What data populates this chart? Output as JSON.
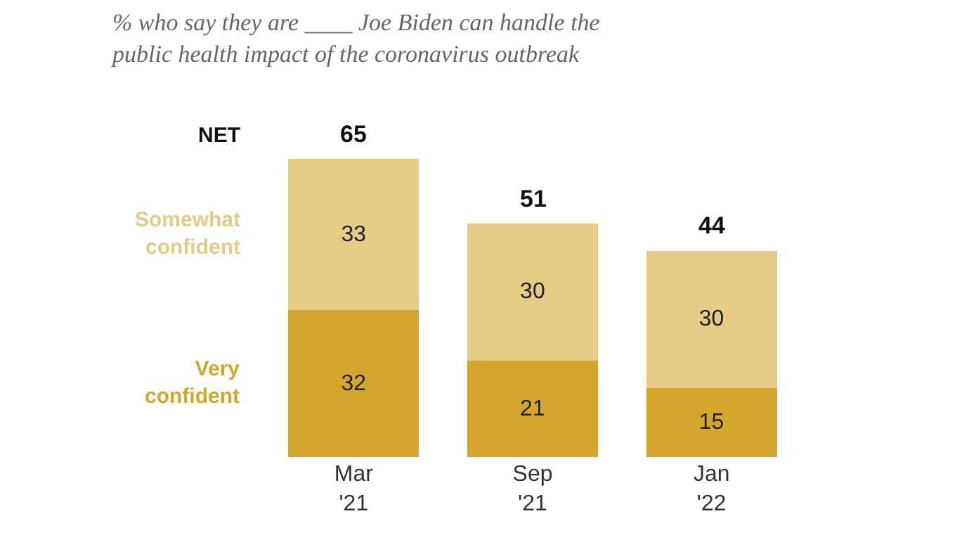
{
  "chart_data": {
    "type": "bar",
    "stacked": true,
    "title": "% who say they are ____ Joe Biden can handle the\npublic health impact of the coronavirus outbreak",
    "categories": [
      "Mar\n'21",
      "Sep\n'21",
      "Jan\n'22"
    ],
    "series": [
      {
        "name": "Very confident",
        "color": "#d4a72c",
        "values": [
          32,
          21,
          15
        ]
      },
      {
        "name": "Somewhat confident",
        "color": "#e5cc85",
        "values": [
          33,
          30,
          30
        ]
      }
    ],
    "data_labels": true,
    "totals": [
      "65",
      "51",
      "44"
    ],
    "annotations": [
      "NET"
    ],
    "legend": false
  }
}
